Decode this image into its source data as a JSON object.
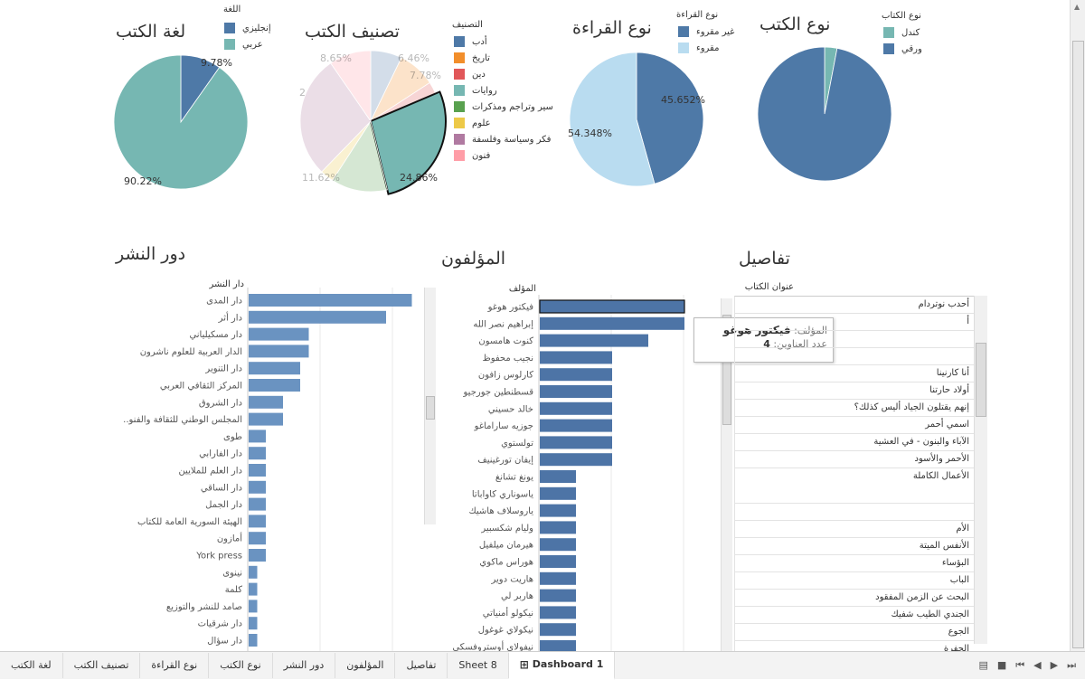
{
  "colors": {
    "steel": "#4e79a7",
    "teal": "#76b7b2",
    "lightblue": "#b9dcf0",
    "bar": "#6a93c1",
    "bar_dark": "#4d74a6",
    "orange": "#f28e2b",
    "red": "#e15759",
    "green": "#59a14f",
    "yellow": "#edc948",
    "purple": "#b07aa1",
    "pink": "#ff9da7"
  },
  "language_chart": {
    "title": "لغة الكتب",
    "legend_title": "اللغة",
    "legend": [
      "إنجليزي",
      "عربي"
    ],
    "labels": [
      "9.78%",
      "90.22%"
    ]
  },
  "category_chart": {
    "title": "تصنيف الكتب",
    "legend_title": "التصنيف",
    "legend": [
      "أدب",
      "تاريخ",
      "دين",
      "روايات",
      "سير وتراجم ومذكرات",
      "علوم",
      "فكر وسياسة وفلسفة",
      "فنون"
    ],
    "labels": [
      "8.65%",
      "6.46%",
      "7.78%",
      "24.86%",
      "11.62%",
      "2"
    ]
  },
  "reading_chart": {
    "title": "نوع القراءة",
    "legend_title": "نوع القراءة",
    "legend": [
      "غير مقروء",
      "مقروء"
    ],
    "labels": [
      "45.652%",
      "54.348%"
    ]
  },
  "type_chart": {
    "title": "نوع الكتب",
    "legend_title": "نوع الكتاب",
    "legend": [
      "كندل",
      "ورقي"
    ]
  },
  "chart_data": [
    {
      "type": "pie",
      "title": "لغة الكتب",
      "legend_title": "اللغة",
      "categories": [
        "إنجليزي",
        "عربي"
      ],
      "values": [
        9.78,
        90.22
      ]
    },
    {
      "type": "pie",
      "title": "تصنيف الكتب",
      "legend_title": "التصنيف",
      "categories": [
        "أدب",
        "تاريخ",
        "دين",
        "روايات",
        "سير وتراجم ومذكرات",
        "علوم",
        "فكر وسياسة وفلسفة",
        "فنون"
      ],
      "values": [
        6.46,
        7.78,
        2.5,
        24.86,
        11.62,
        2.81,
        25.32,
        8.65
      ],
      "highlighted": "روايات"
    },
    {
      "type": "pie",
      "title": "نوع القراءة",
      "legend_title": "نوع القراءة",
      "categories": [
        "غير مقروء",
        "مقروء"
      ],
      "values": [
        45.652,
        54.348
      ]
    },
    {
      "type": "pie",
      "title": "نوع الكتب",
      "legend_title": "نوع الكتاب",
      "categories": [
        "كندل",
        "ورقي"
      ],
      "values": [
        3,
        97
      ]
    },
    {
      "type": "bar",
      "orientation": "horizontal",
      "title": "دور النشر",
      "ylabel": "دار النشر",
      "categories": [
        "دار المدى",
        "دار أثر",
        "دار مسكيلياني",
        "الدار العربية للعلوم ناشرون",
        "دار التنوير",
        "المركز الثقافي العربي",
        "دار الشروق",
        "المجلس الوطني للثقافة والفنو..",
        "طوى",
        "دار الفارابي",
        "دار العلم للملايين",
        "دار الساقي",
        "دار الجمل",
        "الهيئة السورية العامة للكتاب",
        "أمازون",
        "York press",
        "نينوى",
        "كلمة",
        "صامد للنشر والتوزيع",
        "دار شرقيات",
        "دار سؤال"
      ],
      "values": [
        19,
        16,
        7,
        7,
        6,
        6,
        4,
        4,
        2,
        2,
        2,
        2,
        2,
        2,
        2,
        2,
        1,
        1,
        1,
        1,
        1
      ]
    },
    {
      "type": "bar",
      "orientation": "horizontal",
      "title": "المؤلفون",
      "ylabel": "المؤلف",
      "categories": [
        "فيكتور هوغو",
        "إبراهيم نصر الله",
        "كنوت هامسون",
        "نجيب محفوظ",
        "كارلوس زافون",
        "قسطنطين جورجيو",
        "خالد حسيني",
        "جوزيه ساراماغو",
        "تولستوي",
        "إيفان تورغينيف",
        "يونغ تشانغ",
        "ياسوناري كاواباتا",
        "ياروسلاف هاشيك",
        "وليام شكسبير",
        "هيرمان ميلفيل",
        "هوراس ماكوي",
        "هاريت دوير",
        "هاربر لي",
        "نيكولو أمنياتي",
        "نيكولاي غوغول",
        "نيفولاي أوستروفسكي"
      ],
      "values": [
        4,
        4,
        3,
        2,
        2,
        2,
        2,
        2,
        2,
        2,
        1,
        1,
        1,
        1,
        1,
        1,
        1,
        1,
        1,
        1,
        1
      ]
    }
  ],
  "publishers": {
    "title": "دور النشر",
    "header": "دار النشر"
  },
  "authors": {
    "title": "المؤلفون",
    "header": "المؤلف"
  },
  "tooltip": {
    "author_label": "المؤلف:",
    "author_value": "فيكتور هوغو",
    "count_label": "عدد العناوين:",
    "count_value": "4"
  },
  "details": {
    "title": "تفاصيل",
    "header": "عنوان الكتاب",
    "rows": [
      "أحدب نوتردام",
      "أ",
      "",
      "",
      "أنا كارنينا",
      "أولاد حارتنا",
      "إنهم يقتلون الجياد أليس كذلك؟",
      "اسمي أحمر",
      "الآباء والبنون - في العشية",
      "الأحمر والأسود",
      "الأعمال الكاملة",
      "",
      "الأم",
      "الأنفس الميتة",
      "البؤساء",
      "الباب",
      "البحث عن الزمن المفقود",
      "الجندي الطيب شفيك",
      "الجوع",
      "الحفرة",
      "الدون الهادئ"
    ]
  },
  "tabs": [
    "لغة الكتب",
    "تصنيف الكتب",
    "نوع القراءة",
    "نوع الكتب",
    "دور النشر",
    "المؤلفون",
    "تفاصيل",
    "Sheet 8",
    "Dashboard 1"
  ]
}
